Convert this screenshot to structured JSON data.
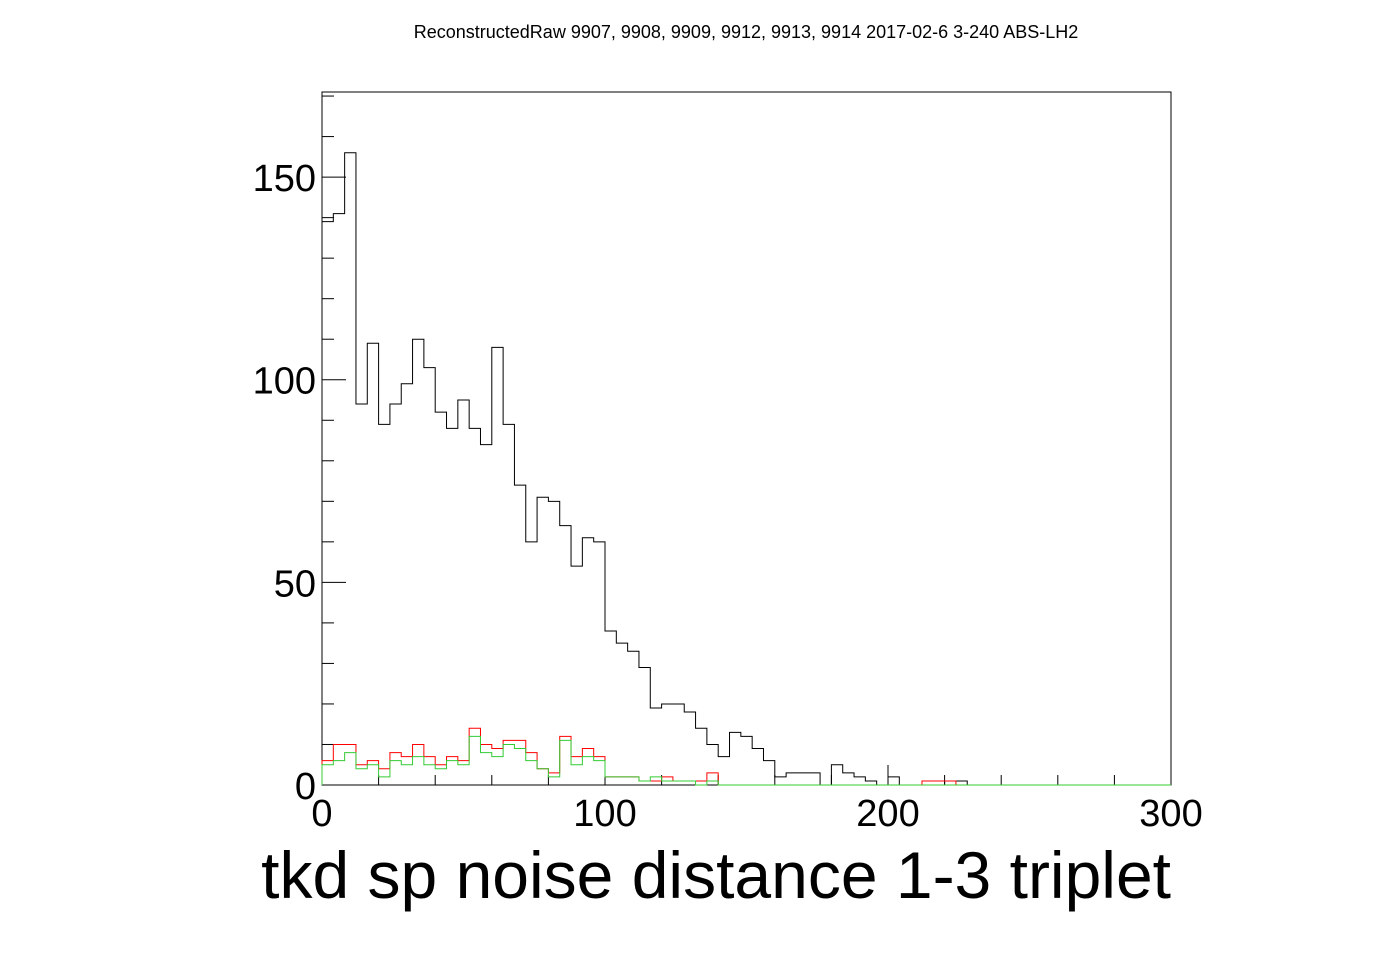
{
  "chart_data": {
    "type": "histogram",
    "title": "ReconstructedRaw 9907, 9908, 9909, 9912, 9913, 9914 2017-02-6 3-240 ABS-LH2",
    "xlabel": "tkd sp noise distance 1-3 triplet",
    "ylabel": "",
    "xlim": [
      0,
      300
    ],
    "ylim": [
      0,
      171
    ],
    "bin_width": 4,
    "x_ticks": [
      "0",
      "100",
      "200",
      "300"
    ],
    "y_ticks": [
      "0",
      "50",
      "100",
      "150"
    ],
    "y_tick_values": [
      0,
      50,
      100,
      150
    ],
    "x_tick_values": [
      0,
      100,
      200,
      300
    ],
    "grid": false,
    "legend": "none",
    "series": [
      {
        "color": "#000000",
        "values": [
          139,
          141,
          156,
          94,
          109,
          89,
          94,
          99,
          110,
          103,
          92,
          88,
          95,
          88,
          84,
          108,
          89,
          74,
          60,
          71,
          70,
          64,
          54,
          61,
          60,
          38,
          35,
          33,
          29,
          19,
          20,
          20,
          18,
          14,
          10,
          7,
          13,
          12,
          9,
          6,
          2,
          3,
          3,
          3,
          0,
          5,
          3,
          2,
          1,
          0,
          2,
          0,
          0,
          0,
          0,
          1,
          1,
          0,
          0,
          0,
          0,
          0,
          0,
          0,
          0,
          0,
          0,
          0,
          0,
          0,
          0,
          0,
          0,
          0,
          0
        ]
      },
      {
        "color": "#ff0000",
        "values": [
          6,
          10,
          10,
          5,
          6,
          4,
          8,
          7,
          10,
          7,
          5,
          7,
          6,
          14,
          10,
          9,
          11,
          11,
          8,
          4,
          3,
          12,
          7,
          9,
          7,
          2,
          2,
          2,
          1,
          1,
          2,
          1,
          1,
          1,
          3,
          0,
          0,
          0,
          0,
          0,
          0,
          0,
          0,
          0,
          0,
          0,
          0,
          0,
          0,
          0,
          0,
          0,
          0,
          1,
          1,
          1,
          0,
          0,
          0,
          0,
          0,
          0,
          0,
          0,
          0,
          0,
          0,
          0,
          0,
          0,
          0,
          0,
          0,
          0,
          0
        ]
      },
      {
        "color": "#33cc33",
        "values": [
          5,
          6,
          8,
          4,
          5,
          2,
          6,
          5,
          7,
          5,
          4,
          6,
          5,
          12,
          8,
          7,
          10,
          9,
          6,
          4,
          2,
          11,
          5,
          7,
          6,
          2,
          2,
          2,
          1,
          2,
          1,
          1,
          1,
          0,
          1,
          0,
          0,
          0,
          0,
          0,
          0,
          0,
          0,
          0,
          0,
          0,
          0,
          0,
          0,
          0,
          0,
          0,
          0,
          0,
          0,
          0,
          0,
          0,
          0,
          0,
          0,
          0,
          0,
          0,
          0,
          0,
          0,
          0,
          0,
          0,
          0,
          0,
          0,
          0,
          0
        ]
      }
    ]
  }
}
